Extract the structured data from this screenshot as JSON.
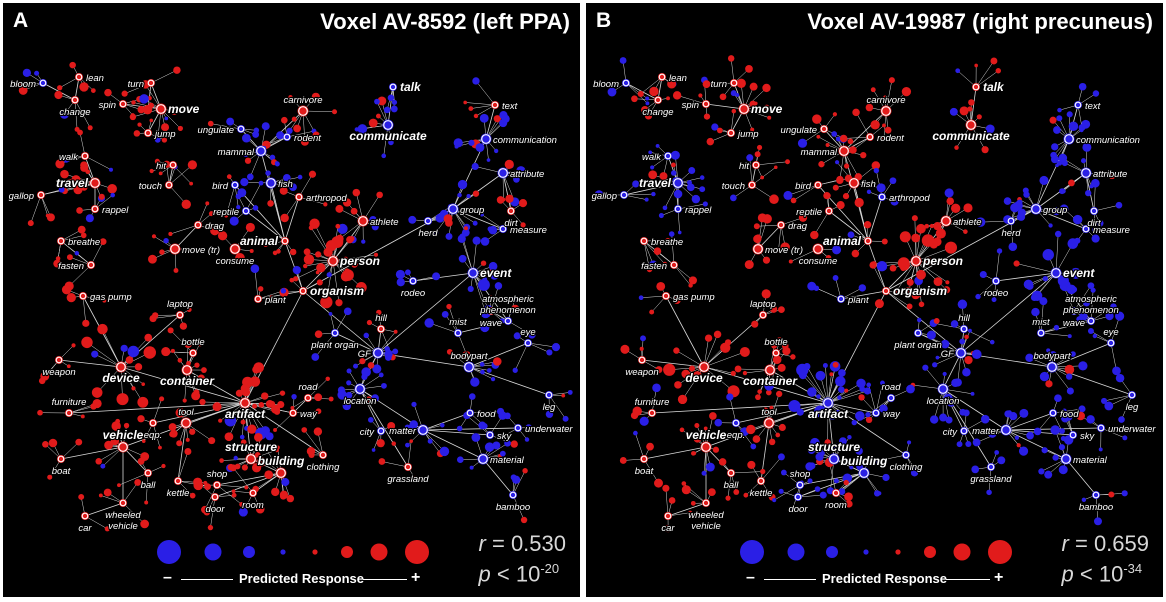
{
  "panels": [
    {
      "id": "A",
      "letter": "A",
      "title": "Voxel AV-8592 (left PPA)",
      "r_value": "0.530",
      "p_exp": "-20",
      "colors": {
        "positive": "#e11b1b",
        "negative": "#2a1fe6",
        "edge": "#d9d9d9"
      },
      "nodes": [
        {
          "label": "bloom",
          "s": -1
        },
        {
          "label": "lean",
          "s": 1
        },
        {
          "label": "change",
          "s": 1
        },
        {
          "label": "spin",
          "s": 1
        },
        {
          "label": "turn",
          "s": 1
        },
        {
          "label": "move",
          "s": 1
        },
        {
          "label": "jump",
          "s": 1
        },
        {
          "label": "walk",
          "s": 1
        },
        {
          "label": "travel",
          "s": 1
        },
        {
          "label": "gallop",
          "s": 1
        },
        {
          "label": "rappel",
          "s": 1
        },
        {
          "label": "hit",
          "s": 1
        },
        {
          "label": "touch",
          "s": 1
        },
        {
          "label": "breathe",
          "s": 1
        },
        {
          "label": "fasten",
          "s": 1
        },
        {
          "label": "drag",
          "s": 1
        },
        {
          "label": "move (tr)",
          "s": 1
        },
        {
          "label": "consume",
          "s": 1
        },
        {
          "label": "ungulate",
          "s": -1
        },
        {
          "label": "mammal",
          "s": -1
        },
        {
          "label": "rodent",
          "s": -1
        },
        {
          "label": "carnivore",
          "s": 1
        },
        {
          "label": "bird",
          "s": -1
        },
        {
          "label": "fish",
          "s": -1
        },
        {
          "label": "reptile",
          "s": -1
        },
        {
          "label": "arthropod",
          "s": 1
        },
        {
          "label": "animal",
          "s": 1
        },
        {
          "label": "athlete",
          "s": 1
        },
        {
          "label": "person",
          "s": 1
        },
        {
          "label": "organism",
          "s": 1
        },
        {
          "label": "plant",
          "s": 1
        },
        {
          "label": "talk",
          "s": -1
        },
        {
          "label": "communicate",
          "s": -1
        },
        {
          "label": "text",
          "s": 1
        },
        {
          "label": "communication",
          "s": -1
        },
        {
          "label": "attribute",
          "s": -1
        },
        {
          "label": "group",
          "s": -1
        },
        {
          "label": "herd",
          "s": -1
        },
        {
          "label": "dirt",
          "s": 1
        },
        {
          "label": "measure",
          "s": -1
        },
        {
          "label": "event",
          "s": -1
        },
        {
          "label": "rodeo",
          "s": -1
        },
        {
          "label": "atmospheric\nphenomenon",
          "s": -1
        },
        {
          "label": "wave",
          "s": 1
        },
        {
          "label": "mist",
          "s": -1
        },
        {
          "label": "eye",
          "s": -1
        },
        {
          "label": "leg",
          "s": -1
        },
        {
          "label": "bodypart",
          "s": -1
        },
        {
          "label": "hill",
          "s": 1
        },
        {
          "label": "plant organ",
          "s": -1
        },
        {
          "label": "GF",
          "s": -1
        },
        {
          "label": "location",
          "s": -1
        },
        {
          "label": "food",
          "s": -1
        },
        {
          "label": "matter",
          "s": -1
        },
        {
          "label": "sky",
          "s": -1
        },
        {
          "label": "underwater",
          "s": -1
        },
        {
          "label": "city",
          "s": -1
        },
        {
          "label": "material",
          "s": -1
        },
        {
          "label": "grassland",
          "s": 1
        },
        {
          "label": "bamboo",
          "s": -1
        },
        {
          "label": "gas pump",
          "s": 1
        },
        {
          "label": "laptop",
          "s": 1
        },
        {
          "label": "weapon",
          "s": 1
        },
        {
          "label": "device",
          "s": 1
        },
        {
          "label": "bottle",
          "s": 1
        },
        {
          "label": "container",
          "s": 1
        },
        {
          "label": "furniture",
          "s": 1
        },
        {
          "label": "eqp.",
          "s": 1
        },
        {
          "label": "tool",
          "s": 1
        },
        {
          "label": "artifact",
          "s": 1
        },
        {
          "label": "road",
          "s": 1
        },
        {
          "label": "way",
          "s": 1
        },
        {
          "label": "vehicle",
          "s": 1
        },
        {
          "label": "boat",
          "s": 1
        },
        {
          "label": "structure",
          "s": 1
        },
        {
          "label": "ball",
          "s": 1
        },
        {
          "label": "kettle",
          "s": 1
        },
        {
          "label": "clothing",
          "s": 1
        },
        {
          "label": "building",
          "s": 1
        },
        {
          "label": "shop",
          "s": 1
        },
        {
          "label": "door",
          "s": 1
        },
        {
          "label": "room",
          "s": 1
        },
        {
          "label": "car",
          "s": 1
        },
        {
          "label": "wheeled\nvehicle",
          "s": 1
        }
      ]
    },
    {
      "id": "B",
      "letter": "B",
      "title": "Voxel AV-19987 (right precuneus)",
      "r_value": "0.659",
      "p_exp": "-34",
      "colors": {
        "positive": "#e11b1b",
        "negative": "#2a1fe6",
        "edge": "#d9d9d9"
      },
      "nodes": [
        {
          "label": "bloom",
          "s": -1
        },
        {
          "label": "lean",
          "s": 1
        },
        {
          "label": "change",
          "s": 1
        },
        {
          "label": "spin",
          "s": 1
        },
        {
          "label": "turn",
          "s": 1
        },
        {
          "label": "move",
          "s": 1
        },
        {
          "label": "jump",
          "s": 1
        },
        {
          "label": "walk",
          "s": -1
        },
        {
          "label": "travel",
          "s": -1
        },
        {
          "label": "gallop",
          "s": -1
        },
        {
          "label": "rappel",
          "s": -1
        },
        {
          "label": "hit",
          "s": 1
        },
        {
          "label": "touch",
          "s": 1
        },
        {
          "label": "breathe",
          "s": 1
        },
        {
          "label": "fasten",
          "s": 1
        },
        {
          "label": "drag",
          "s": 1
        },
        {
          "label": "move (tr)",
          "s": 1
        },
        {
          "label": "consume",
          "s": 1
        },
        {
          "label": "ungulate",
          "s": 1
        },
        {
          "label": "mammal",
          "s": 1
        },
        {
          "label": "rodent",
          "s": 1
        },
        {
          "label": "carnivore",
          "s": 1
        },
        {
          "label": "bird",
          "s": 1
        },
        {
          "label": "fish",
          "s": 1
        },
        {
          "label": "reptile",
          "s": 1
        },
        {
          "label": "arthropod",
          "s": -1
        },
        {
          "label": "animal",
          "s": 1
        },
        {
          "label": "athlete",
          "s": 1
        },
        {
          "label": "person",
          "s": 1
        },
        {
          "label": "organism",
          "s": 1
        },
        {
          "label": "plant",
          "s": -1
        },
        {
          "label": "talk",
          "s": 1
        },
        {
          "label": "communicate",
          "s": 1
        },
        {
          "label": "text",
          "s": -1
        },
        {
          "label": "communication",
          "s": -1
        },
        {
          "label": "attribute",
          "s": -1
        },
        {
          "label": "group",
          "s": -1
        },
        {
          "label": "herd",
          "s": -1
        },
        {
          "label": "dirt",
          "s": -1
        },
        {
          "label": "measure",
          "s": -1
        },
        {
          "label": "event",
          "s": -1
        },
        {
          "label": "rodeo",
          "s": -1
        },
        {
          "label": "atmospheric\nphenomenon",
          "s": -1
        },
        {
          "label": "wave",
          "s": -1
        },
        {
          "label": "mist",
          "s": -1
        },
        {
          "label": "eye",
          "s": -1
        },
        {
          "label": "leg",
          "s": -1
        },
        {
          "label": "bodypart",
          "s": -1
        },
        {
          "label": "hill",
          "s": -1
        },
        {
          "label": "plant organ",
          "s": -1
        },
        {
          "label": "GF",
          "s": -1
        },
        {
          "label": "location",
          "s": -1
        },
        {
          "label": "food",
          "s": -1
        },
        {
          "label": "matter",
          "s": -1
        },
        {
          "label": "sky",
          "s": -1
        },
        {
          "label": "underwater",
          "s": -1
        },
        {
          "label": "city",
          "s": -1
        },
        {
          "label": "material",
          "s": -1
        },
        {
          "label": "grassland",
          "s": -1
        },
        {
          "label": "bamboo",
          "s": -1
        },
        {
          "label": "gas pump",
          "s": 1
        },
        {
          "label": "laptop",
          "s": 1
        },
        {
          "label": "weapon",
          "s": 1
        },
        {
          "label": "device",
          "s": 1
        },
        {
          "label": "bottle",
          "s": 1
        },
        {
          "label": "container",
          "s": 1
        },
        {
          "label": "furniture",
          "s": 1
        },
        {
          "label": "eqp.",
          "s": -1
        },
        {
          "label": "tool",
          "s": 1
        },
        {
          "label": "artifact",
          "s": -1
        },
        {
          "label": "road",
          "s": -1
        },
        {
          "label": "way",
          "s": -1
        },
        {
          "label": "vehicle",
          "s": 1
        },
        {
          "label": "boat",
          "s": 1
        },
        {
          "label": "structure",
          "s": -1
        },
        {
          "label": "ball",
          "s": 1
        },
        {
          "label": "kettle",
          "s": 1
        },
        {
          "label": "clothing",
          "s": -1
        },
        {
          "label": "building",
          "s": -1
        },
        {
          "label": "shop",
          "s": -1
        },
        {
          "label": "door",
          "s": -1
        },
        {
          "label": "room",
          "s": 1
        },
        {
          "label": "car",
          "s": 1
        },
        {
          "label": "wheeled\nvehicle",
          "s": 1
        }
      ]
    }
  ],
  "legend": {
    "minus": "–",
    "label": "Predicted Response",
    "plus": "+",
    "levels": [
      -4,
      -3,
      -2,
      -1,
      1,
      2,
      3,
      4
    ]
  },
  "stats_labels": {
    "r": "r",
    "eq": " = ",
    "p": "p",
    "lt": " < ",
    "base": "10"
  }
}
